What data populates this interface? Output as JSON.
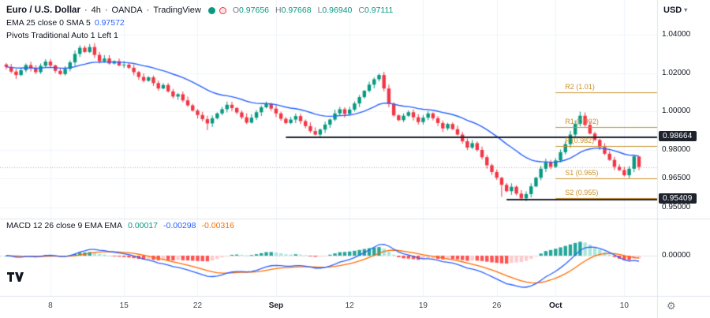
{
  "legend": {
    "symbol": "Euro / U.S. Dollar",
    "sep": "·",
    "interval": "4h",
    "exchange": "OANDA",
    "brand": "TradingView",
    "ohlc": [
      {
        "label": "O",
        "value": "0.97656"
      },
      {
        "label": "H",
        "value": "0.97668"
      },
      {
        "label": "L",
        "value": "0.96940"
      },
      {
        "label": "C",
        "value": "0.97111"
      }
    ],
    "ema": {
      "name": "EMA 25 close 0 SMA 5",
      "value": "0.97572"
    },
    "pivots_name": "Pivots Traditional Auto 1 Left 1",
    "macd": {
      "name": "MACD 12 26 close 9 EMA EMA",
      "hist": "0.00017",
      "macd": "-0.00298",
      "signal": "-0.00316"
    }
  },
  "top_right": {
    "currency": "USD"
  },
  "icons": {
    "gear": "⚙",
    "chevron_down": "▾"
  },
  "price_axis": {
    "labels": [
      "1.04000",
      "1.02000",
      "1.00000",
      "0.98000",
      "0.96500",
      "0.95000"
    ],
    "macd_zero_label": "0.00000"
  },
  "colors": {
    "up": "#089981",
    "down": "#F23645",
    "ema": "#2962FF",
    "macd_line": "#2962FF",
    "macd_signal": "#FF6D00",
    "hist_up": "#26A69A",
    "hist_up_light": "#ACE5DC",
    "hist_down": "#FF5252",
    "hist_down_light": "#FCCBCD",
    "pivot": "#C9912B",
    "trend_line": "#1E222D",
    "grid": "#F0F3FA",
    "dotted": "#B2B5BE",
    "separator": "#E0E3EB",
    "badge_bg": "#1E222D",
    "badge_text": "#FFFFFF",
    "text": "#131722",
    "muted": "#787B86"
  },
  "chart_data": {
    "type": "candlestick",
    "title": "Euro / U.S. Dollar",
    "interval": "4h",
    "exchange": "OANDA",
    "axis_ticks": [
      1.04,
      1.02,
      1.0,
      0.98,
      0.965,
      0.95
    ],
    "time_ticks": [
      {
        "index": 9,
        "label": "8"
      },
      {
        "index": 24,
        "label": "15"
      },
      {
        "index": 39,
        "label": "22"
      },
      {
        "index": 55,
        "label": "Sep",
        "strong": true
      },
      {
        "index": 70,
        "label": "12"
      },
      {
        "index": 85,
        "label": "19"
      },
      {
        "index": 100,
        "label": "26"
      },
      {
        "index": 112,
        "label": "Oct",
        "strong": true
      },
      {
        "index": 126,
        "label": "10"
      }
    ],
    "candles": {
      "first_open": 1.0245,
      "closes": [
        1.0232,
        1.0208,
        1.019,
        1.0215,
        1.0242,
        1.0225,
        1.0205,
        1.0238,
        1.026,
        1.024,
        1.0212,
        1.0195,
        1.0222,
        1.0256,
        1.03,
        1.0332,
        1.031,
        1.0336,
        1.0295,
        1.0262,
        1.0276,
        1.025,
        1.0262,
        1.024,
        1.0244,
        1.0228,
        1.0205,
        1.018,
        1.016,
        1.0178,
        1.0148,
        1.012,
        1.0138,
        1.0105,
        1.0078,
        1.009,
        1.0058,
        1.0032,
        1.0005,
        0.9982,
        0.996,
        0.9938,
        0.9965,
        0.999,
        1.0012,
        1.0035,
        1.0018,
        0.9995,
        0.997,
        0.9942,
        0.9968,
        0.9996,
        1.0022,
        1.004,
        1.0015,
        0.999,
        0.9962,
        0.994,
        0.9958,
        0.9976,
        0.995,
        0.9924,
        0.9898,
        0.988,
        0.9906,
        0.9932,
        0.9958,
        0.999,
        1.0012,
        0.9988,
        1.001,
        1.0042,
        1.0075,
        1.0108,
        1.014,
        1.0168,
        1.019,
        1.012,
        1.004,
        0.998,
        0.9955,
        0.9978,
        0.9996,
        0.997,
        0.9945,
        0.9968,
        0.999,
        0.9965,
        0.994,
        0.9912,
        0.9935,
        0.9908,
        0.988,
        0.9845,
        0.9812,
        0.9835,
        0.98,
        0.9762,
        0.972,
        0.9685,
        0.9655,
        0.9618,
        0.9585,
        0.9608,
        0.9572,
        0.9548,
        0.957,
        0.961,
        0.9655,
        0.9702,
        0.9735,
        0.9712,
        0.9745,
        0.9788,
        0.983,
        0.988,
        0.9935,
        0.9978,
        0.993,
        0.9885,
        0.9852,
        0.9815,
        0.978,
        0.9748,
        0.9712,
        0.9695,
        0.9668,
        0.9702,
        0.9766,
        0.9711
      ],
      "overrides": {
        "15": {
          "h": 1.0345
        },
        "17": {
          "h": 1.0352
        },
        "41": {
          "l": 0.9903
        },
        "63": {
          "l": 0.9876
        },
        "76": {
          "h": 1.0198
        },
        "101": {
          "l": 0.9556
        },
        "105": {
          "l": 0.9536
        },
        "117": {
          "h": 0.9999
        },
        "129": {
          "o": 0.97656,
          "h": 0.97668,
          "l": 0.9694,
          "c": 0.97111
        }
      }
    },
    "ema": {
      "period": 25,
      "last_value": 0.97572
    },
    "last_price": 0.97111,
    "horizontal_lines": [
      {
        "price": 0.98664,
        "start_index": 57,
        "label": "0.98664"
      },
      {
        "price": 0.95409,
        "start_index": 102,
        "label": "0.95409"
      }
    ],
    "pivots": [
      {
        "label": "R2 (1.01)",
        "price": 1.01
      },
      {
        "label": "R1 (0.992)",
        "price": 0.992
      },
      {
        "label": "P (0.982)",
        "price": 0.982
      },
      {
        "label": "S1 (0.965)",
        "price": 0.965
      },
      {
        "label": "S2 (0.955)",
        "price": 0.955
      }
    ],
    "pivot_start_index": 112,
    "macd": {
      "fast": 12,
      "slow": 26,
      "smoothing": 9,
      "hist": 0.00017,
      "macd": -0.00298,
      "signal": -0.00316
    }
  }
}
